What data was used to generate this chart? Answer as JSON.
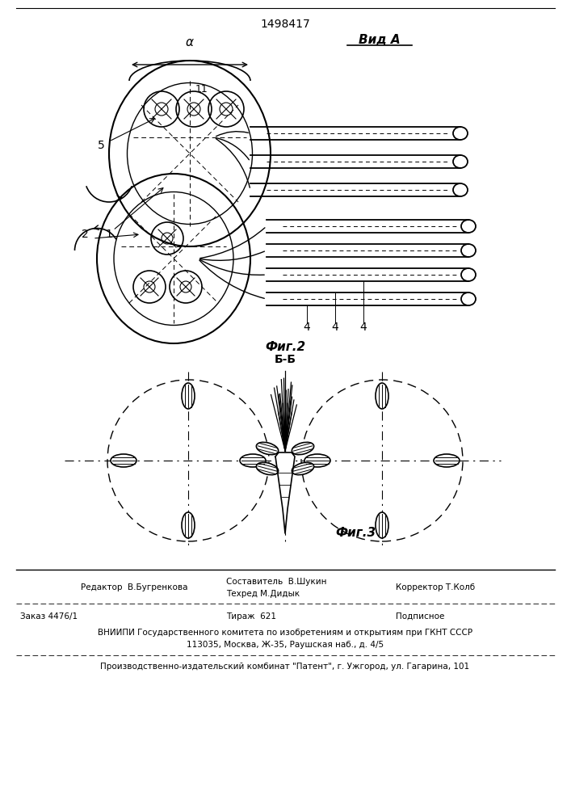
{
  "patent_number": "1498417",
  "view_a_label": "Вид А",
  "fig2_label": "Фиг.2",
  "fig3_label": "Фиг.3",
  "section_label": "Б-Б",
  "alpha_label": "α",
  "labels": {
    "1": [
      1,
      "1"
    ],
    "2": [
      2,
      "2"
    ],
    "4a": [
      4,
      "4"
    ],
    "4b": [
      4,
      "4"
    ],
    "4c": [
      4,
      "4"
    ],
    "5": [
      5,
      "5"
    ],
    "11": [
      11,
      "11"
    ]
  },
  "footer_line1_left": "Редактор  В.Бугренкова",
  "footer_line1_mid": "Составитель  В.Шукин\nТехред М.Дидык",
  "footer_line1_right": "Корректор Т.Колб",
  "footer_line2_left": "Заказ 4476/1",
  "footer_line2_mid": "Тираж  621",
  "footer_line2_right": "Подписное",
  "footer_line3": "ВНИИПИ Государственного комитета по изобретениям и открытиям при ГКНТ СССР",
  "footer_line4": "113035, Москва, Ж-35, Раушская наб., д. 4/5",
  "footer_line5": "Производственно-издательский комбинат \"Патент\", г. Ужгород, ул. Гагарина, 101",
  "bg_color": "#ffffff",
  "line_color": "#000000",
  "dash_color": "#555555"
}
